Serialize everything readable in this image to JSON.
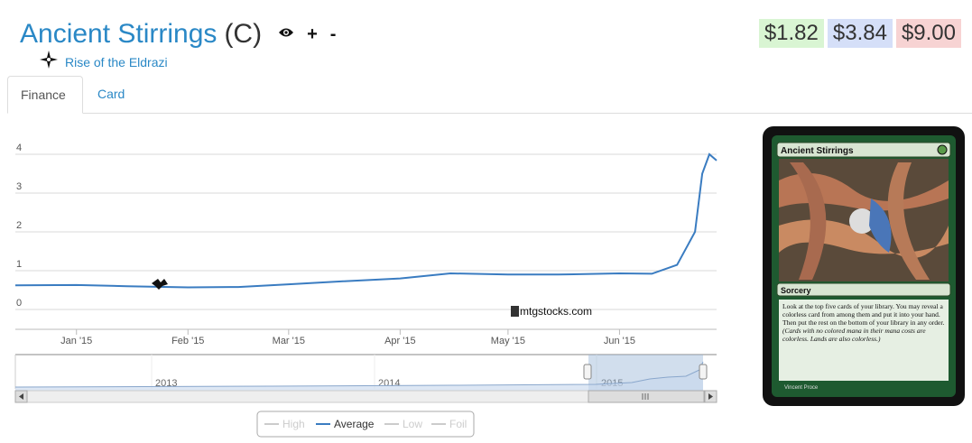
{
  "card": {
    "title": "Ancient Stirrings",
    "rarity": "(C)",
    "set_name": "Rise of the Eldrazi",
    "add_label": "+",
    "remove_label": "-"
  },
  "prices": [
    {
      "label": "$1.82",
      "color": "#d9f5d3"
    },
    {
      "label": "$3.84",
      "color": "#d5dff8"
    },
    {
      "label": "$9.00",
      "color": "#f7d3d3"
    }
  ],
  "tabs": [
    {
      "label": "Finance",
      "active": true
    },
    {
      "label": "Card",
      "active": false
    }
  ],
  "chart": {
    "watermark": "mtgstocks.com",
    "line_color": "#3a7cc1",
    "legend": [
      "High",
      "Average",
      "Low",
      "Foil"
    ],
    "navigator_years": [
      "2013",
      "2014",
      "2015"
    ]
  },
  "card_image": {
    "name": "Ancient Stirrings",
    "type_line": "Sorcery",
    "rules_text": "Look at the top five cards of your library. You may reveal a colorless card from among them and put it into your hand. Then put the rest on the bottom of your library in any order.",
    "reminder_text": "(Cards with no colored mana in their mana costs are colorless. Lands are also colorless.)",
    "artist": "Vincent Proce"
  },
  "chart_data": {
    "type": "line",
    "series": [
      {
        "name": "Average",
        "x": [
          "2014-12-15",
          "2015-01-01",
          "2015-01-15",
          "2015-02-01",
          "2015-02-15",
          "2015-03-01",
          "2015-03-15",
          "2015-04-01",
          "2015-04-15",
          "2015-05-01",
          "2015-05-15",
          "2015-06-01",
          "2015-06-10",
          "2015-06-17",
          "2015-06-22",
          "2015-06-24",
          "2015-06-26",
          "2015-06-28"
        ],
        "values": [
          0.62,
          0.63,
          0.6,
          0.57,
          0.58,
          0.65,
          0.72,
          0.8,
          0.93,
          0.9,
          0.9,
          0.93,
          0.92,
          1.15,
          2.0,
          3.5,
          4.0,
          3.84
        ]
      }
    ],
    "x_ticks": [
      "Jan '15",
      "Feb '15",
      "Mar '15",
      "Apr '15",
      "May '15",
      "Jun '15"
    ],
    "y_ticks": [
      0,
      1,
      2,
      3,
      4
    ],
    "ylim": [
      0,
      5
    ],
    "legend": [
      "High",
      "Average",
      "Low",
      "Foil"
    ],
    "legend_position": "bottom-center"
  }
}
